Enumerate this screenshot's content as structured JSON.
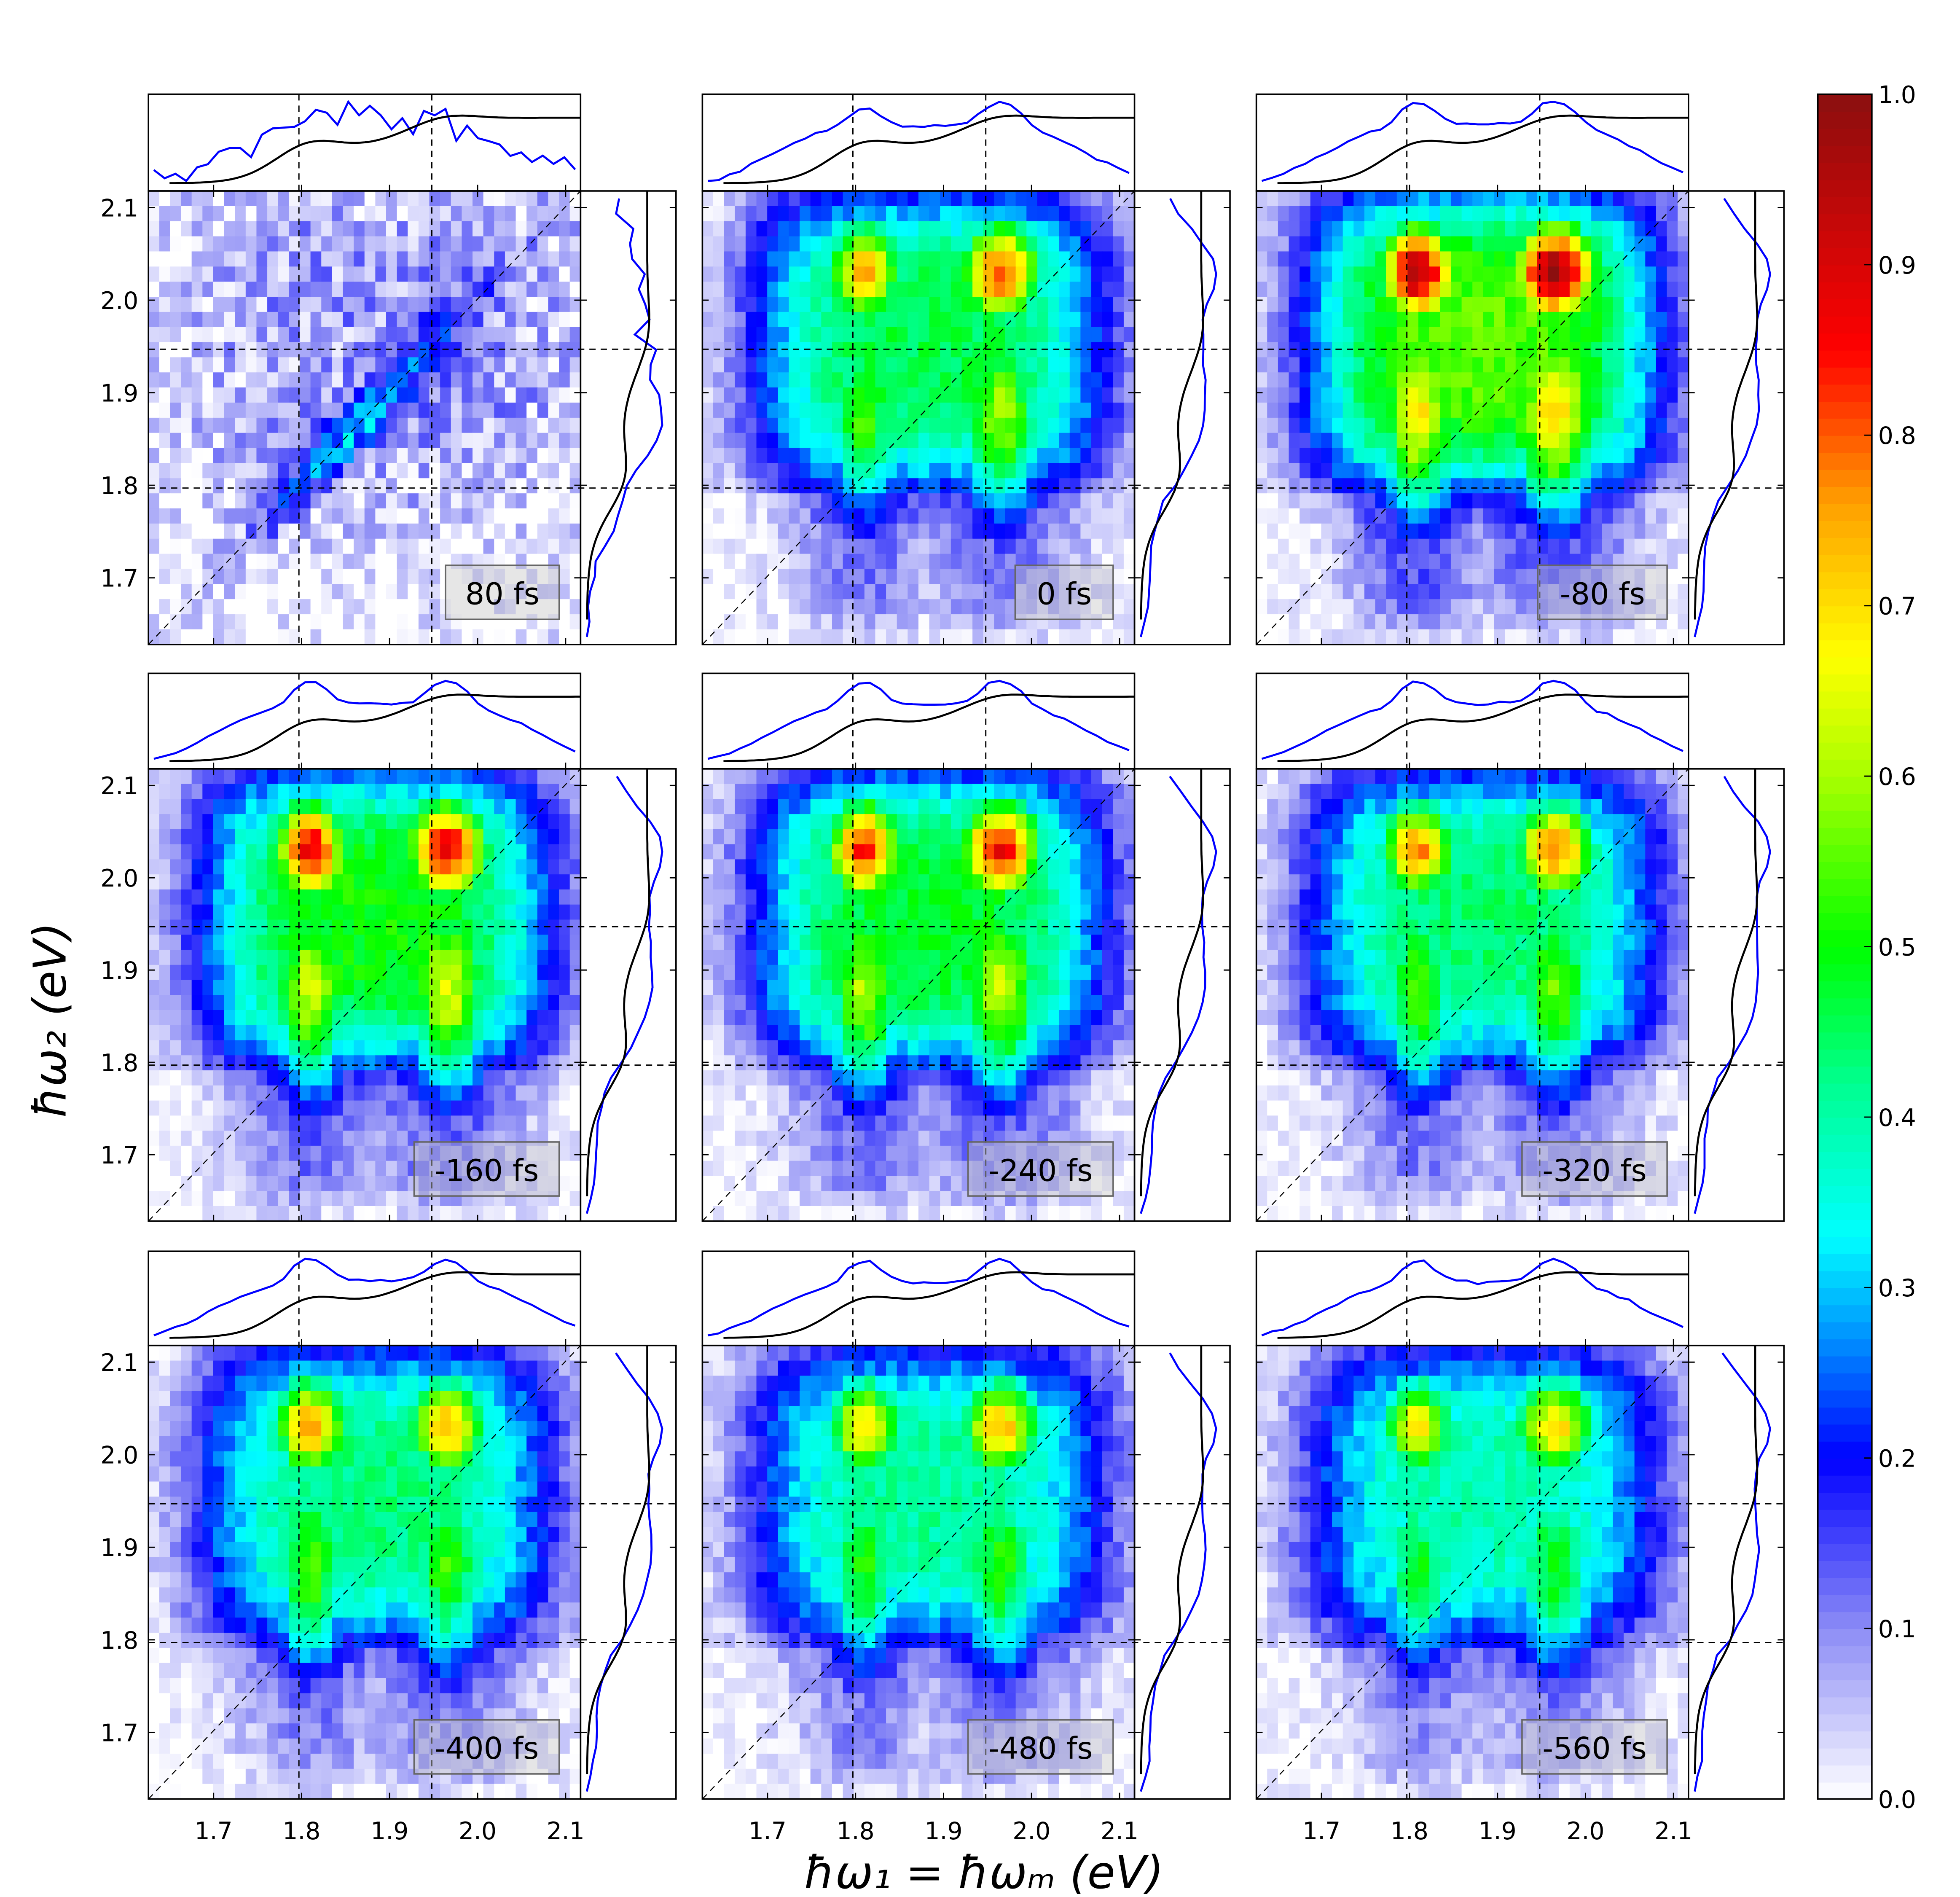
{
  "chart_data": {
    "type": "heatmap",
    "layout": "3x3 grid of 2D spectra with marginal traces",
    "xlabel": "ħω₁  = ħωₘ   (eV)",
    "ylabel": "ħω₂   (eV)",
    "xlim": [
      1.626,
      2.117
    ],
    "ylim": [
      1.628,
      2.118
    ],
    "x_ticks": [
      "1.7",
      "1.8",
      "1.9",
      "2.0",
      "2.1"
    ],
    "y_ticks": [
      "1.7",
      "1.8",
      "1.9",
      "2.0",
      "2.1"
    ],
    "reference_lines": {
      "vertical": [
        1.797,
        1.948
      ],
      "horizontal": [
        1.797,
        1.947
      ],
      "diagonal": true
    },
    "colorbar": {
      "range": [
        0.0,
        1.0
      ],
      "ticks": [
        "0.0",
        "0.1",
        "0.2",
        "0.3",
        "0.4",
        "0.5",
        "0.6",
        "0.7",
        "0.8",
        "0.9",
        "1.0"
      ],
      "colors": [
        {
          "v": 0.0,
          "c": "#ffffff"
        },
        {
          "v": 0.1,
          "c": "#8c8cf5"
        },
        {
          "v": 0.2,
          "c": "#0000ff"
        },
        {
          "v": 0.27,
          "c": "#0090ff"
        },
        {
          "v": 0.33,
          "c": "#00ffff"
        },
        {
          "v": 0.42,
          "c": "#00ff90"
        },
        {
          "v": 0.5,
          "c": "#00ff00"
        },
        {
          "v": 0.6,
          "c": "#a8ff00"
        },
        {
          "v": 0.67,
          "c": "#ffff00"
        },
        {
          "v": 0.76,
          "c": "#ffa000"
        },
        {
          "v": 0.85,
          "c": "#ff0000"
        },
        {
          "v": 1.0,
          "c": "#8b0f0f"
        }
      ]
    },
    "trace_colors": {
      "projection": "#0000ff",
      "reference": "#000000"
    },
    "panels": [
      {
        "label": "80 fs",
        "peak_low_x": 0.15,
        "peak_high_x": 0.15,
        "diagonal_feature": 0.22
      },
      {
        "label": "0 fs",
        "peak_low_x": 0.75,
        "peak_high_x": 0.82
      },
      {
        "label": "-80 fs",
        "peak_low_x": 0.95,
        "peak_high_x": 0.98
      },
      {
        "label": "-160 fs",
        "peak_low_x": 0.88,
        "peak_high_x": 0.89
      },
      {
        "label": "-240 fs",
        "peak_low_x": 0.85,
        "peak_high_x": 0.86
      },
      {
        "label": "-320 fs",
        "peak_low_x": 0.77,
        "peak_high_x": 0.78
      },
      {
        "label": "-400 fs",
        "peak_low_x": 0.76,
        "peak_high_x": 0.73
      },
      {
        "label": "-480 fs",
        "peak_low_x": 0.71,
        "peak_high_x": 0.73
      },
      {
        "label": "-560 fs",
        "peak_low_x": 0.68,
        "peak_high_x": 0.7
      }
    ]
  }
}
